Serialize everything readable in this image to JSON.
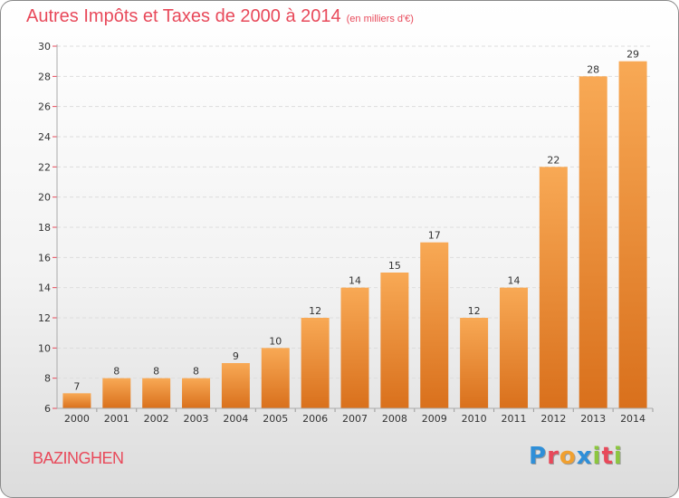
{
  "title": "Autres Impôts et Taxes de 2000 à 2014",
  "subtitle": "(en milliers d'€)",
  "commune": "BAZINGHEN",
  "logo": {
    "text": "Proxiti",
    "letter_colors": [
      "#2f8fd8",
      "#e8495a",
      "#f0a030",
      "#2f8fd8",
      "#8cc63f",
      "#e8495a",
      "#8cc63f"
    ]
  },
  "colors": {
    "bar_top": "#f8a955",
    "bar_bottom": "#d9701c",
    "title": "#e8495a",
    "axis_tick_mark": "#e8495a"
  },
  "chart_data": {
    "type": "bar",
    "title": "Autres Impôts et Taxes de 2000 à 2014",
    "subtitle": "(en milliers d'€)",
    "categories": [
      "2000",
      "2001",
      "2002",
      "2003",
      "2004",
      "2005",
      "2006",
      "2007",
      "2008",
      "2009",
      "2010",
      "2011",
      "2012",
      "2013",
      "2014"
    ],
    "values": [
      7,
      8,
      8,
      8,
      9,
      10,
      12,
      14,
      15,
      17,
      12,
      14,
      22,
      28,
      29
    ],
    "ylim": [
      6,
      30
    ],
    "yticks": [
      6,
      8,
      10,
      12,
      14,
      16,
      18,
      20,
      22,
      24,
      26,
      28,
      30
    ],
    "grid": true,
    "xlabel": "",
    "ylabel": ""
  }
}
